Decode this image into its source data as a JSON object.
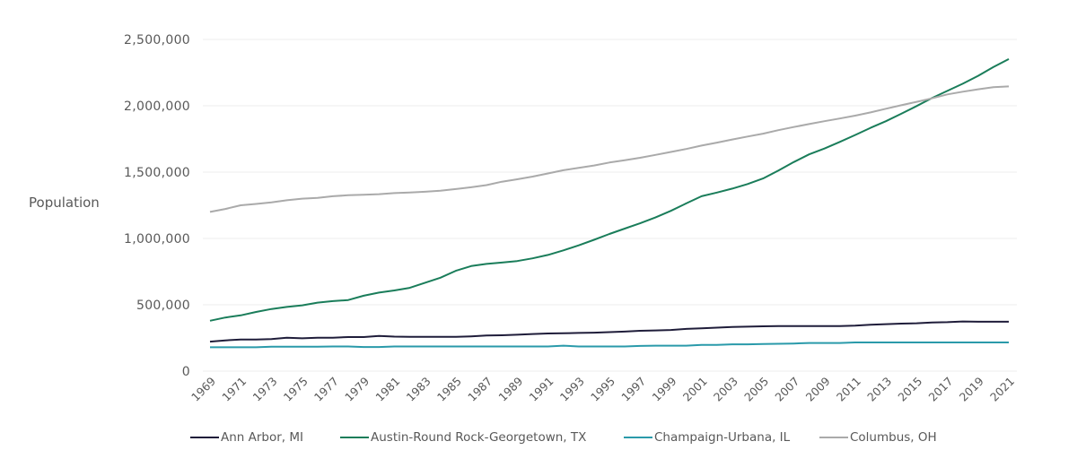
{
  "chart_data": {
    "type": "line",
    "title": "",
    "xlabel": "",
    "ylabel": "Population",
    "ylim": [
      0,
      2500000
    ],
    "yticks": [
      0,
      500000,
      1000000,
      1500000,
      2000000,
      2500000
    ],
    "ytick_labels": [
      "0",
      "500,000",
      "1,000,000",
      "1,500,000",
      "2,000,000",
      "2,500,000"
    ],
    "grid": true,
    "legend_position": "bottom",
    "x": [
      1969,
      1970,
      1971,
      1972,
      1973,
      1974,
      1975,
      1976,
      1977,
      1978,
      1979,
      1980,
      1981,
      1982,
      1983,
      1984,
      1985,
      1986,
      1987,
      1988,
      1989,
      1990,
      1991,
      1992,
      1993,
      1994,
      1995,
      1996,
      1997,
      1998,
      1999,
      2000,
      2001,
      2002,
      2003,
      2004,
      2005,
      2006,
      2007,
      2008,
      2009,
      2010,
      2011,
      2012,
      2013,
      2014,
      2015,
      2016,
      2017,
      2018,
      2019,
      2020,
      2021
    ],
    "xtick_labels": [
      "1969",
      "1971",
      "1973",
      "1975",
      "1977",
      "1979",
      "1981",
      "1983",
      "1985",
      "1987",
      "1989",
      "1991",
      "1993",
      "1995",
      "1997",
      "1999",
      "2001",
      "2003",
      "2005",
      "2007",
      "2009",
      "2011",
      "2013",
      "2015",
      "2017",
      "2019",
      "2021"
    ],
    "series": [
      {
        "name": "Ann Arbor, MI",
        "color": "#1f1d3a",
        "values": [
          222000,
          232000,
          238000,
          238000,
          242000,
          252000,
          247000,
          252000,
          252000,
          257000,
          257000,
          265000,
          260000,
          258000,
          258000,
          258000,
          258000,
          262000,
          268000,
          270000,
          274000,
          280000,
          284000,
          285000,
          288000,
          290000,
          294000,
          298000,
          304000,
          307000,
          310000,
          318000,
          323000,
          328000,
          333000,
          335000,
          338000,
          340000,
          340000,
          340000,
          340000,
          340000,
          343000,
          349000,
          354000,
          358000,
          361000,
          366000,
          369000,
          374000,
          372000,
          372000,
          372000
        ]
      },
      {
        "name": "Austin-Round Rock-Georgetown, TX",
        "color": "#1a7d5a",
        "values": [
          380000,
          404000,
          420000,
          446000,
          468000,
          484000,
          496000,
          516000,
          528000,
          536000,
          568000,
          592000,
          608000,
          628000,
          666000,
          704000,
          756000,
          792000,
          808000,
          818000,
          830000,
          850000,
          876000,
          910000,
          948000,
          990000,
          1034000,
          1074000,
          1114000,
          1158000,
          1208000,
          1264000,
          1318000,
          1346000,
          1376000,
          1410000,
          1452000,
          1512000,
          1576000,
          1634000,
          1678000,
          1728000,
          1780000,
          1834000,
          1884000,
          1940000,
          1998000,
          2058000,
          2112000,
          2166000,
          2226000,
          2292000,
          2352000
        ]
      },
      {
        "name": "Champaign-Urbana, IL",
        "color": "#2a9aaa",
        "values": [
          180000,
          180000,
          180000,
          180000,
          184000,
          184000,
          184000,
          184000,
          186000,
          186000,
          182000,
          182000,
          186000,
          186000,
          186000,
          186000,
          186000,
          186000,
          186000,
          186000,
          186000,
          186000,
          186000,
          192000,
          186000,
          186000,
          186000,
          186000,
          190000,
          192000,
          192000,
          192000,
          198000,
          198000,
          202000,
          202000,
          204000,
          206000,
          208000,
          212000,
          212000,
          212000,
          216000,
          216000,
          216000,
          216000,
          216000,
          216000,
          216000,
          216000,
          216000,
          216000,
          216000
        ]
      },
      {
        "name": "Columbus, OH",
        "color": "#aaaaaa",
        "values": [
          1200000,
          1222000,
          1250000,
          1260000,
          1272000,
          1288000,
          1300000,
          1306000,
          1318000,
          1326000,
          1330000,
          1334000,
          1342000,
          1346000,
          1352000,
          1360000,
          1372000,
          1386000,
          1402000,
          1428000,
          1446000,
          1466000,
          1490000,
          1514000,
          1532000,
          1550000,
          1572000,
          1590000,
          1608000,
          1630000,
          1652000,
          1674000,
          1700000,
          1722000,
          1746000,
          1768000,
          1790000,
          1816000,
          1840000,
          1862000,
          1884000,
          1904000,
          1926000,
          1950000,
          1978000,
          2004000,
          2030000,
          2056000,
          2086000,
          2106000,
          2124000,
          2140000,
          2146000
        ]
      }
    ]
  }
}
